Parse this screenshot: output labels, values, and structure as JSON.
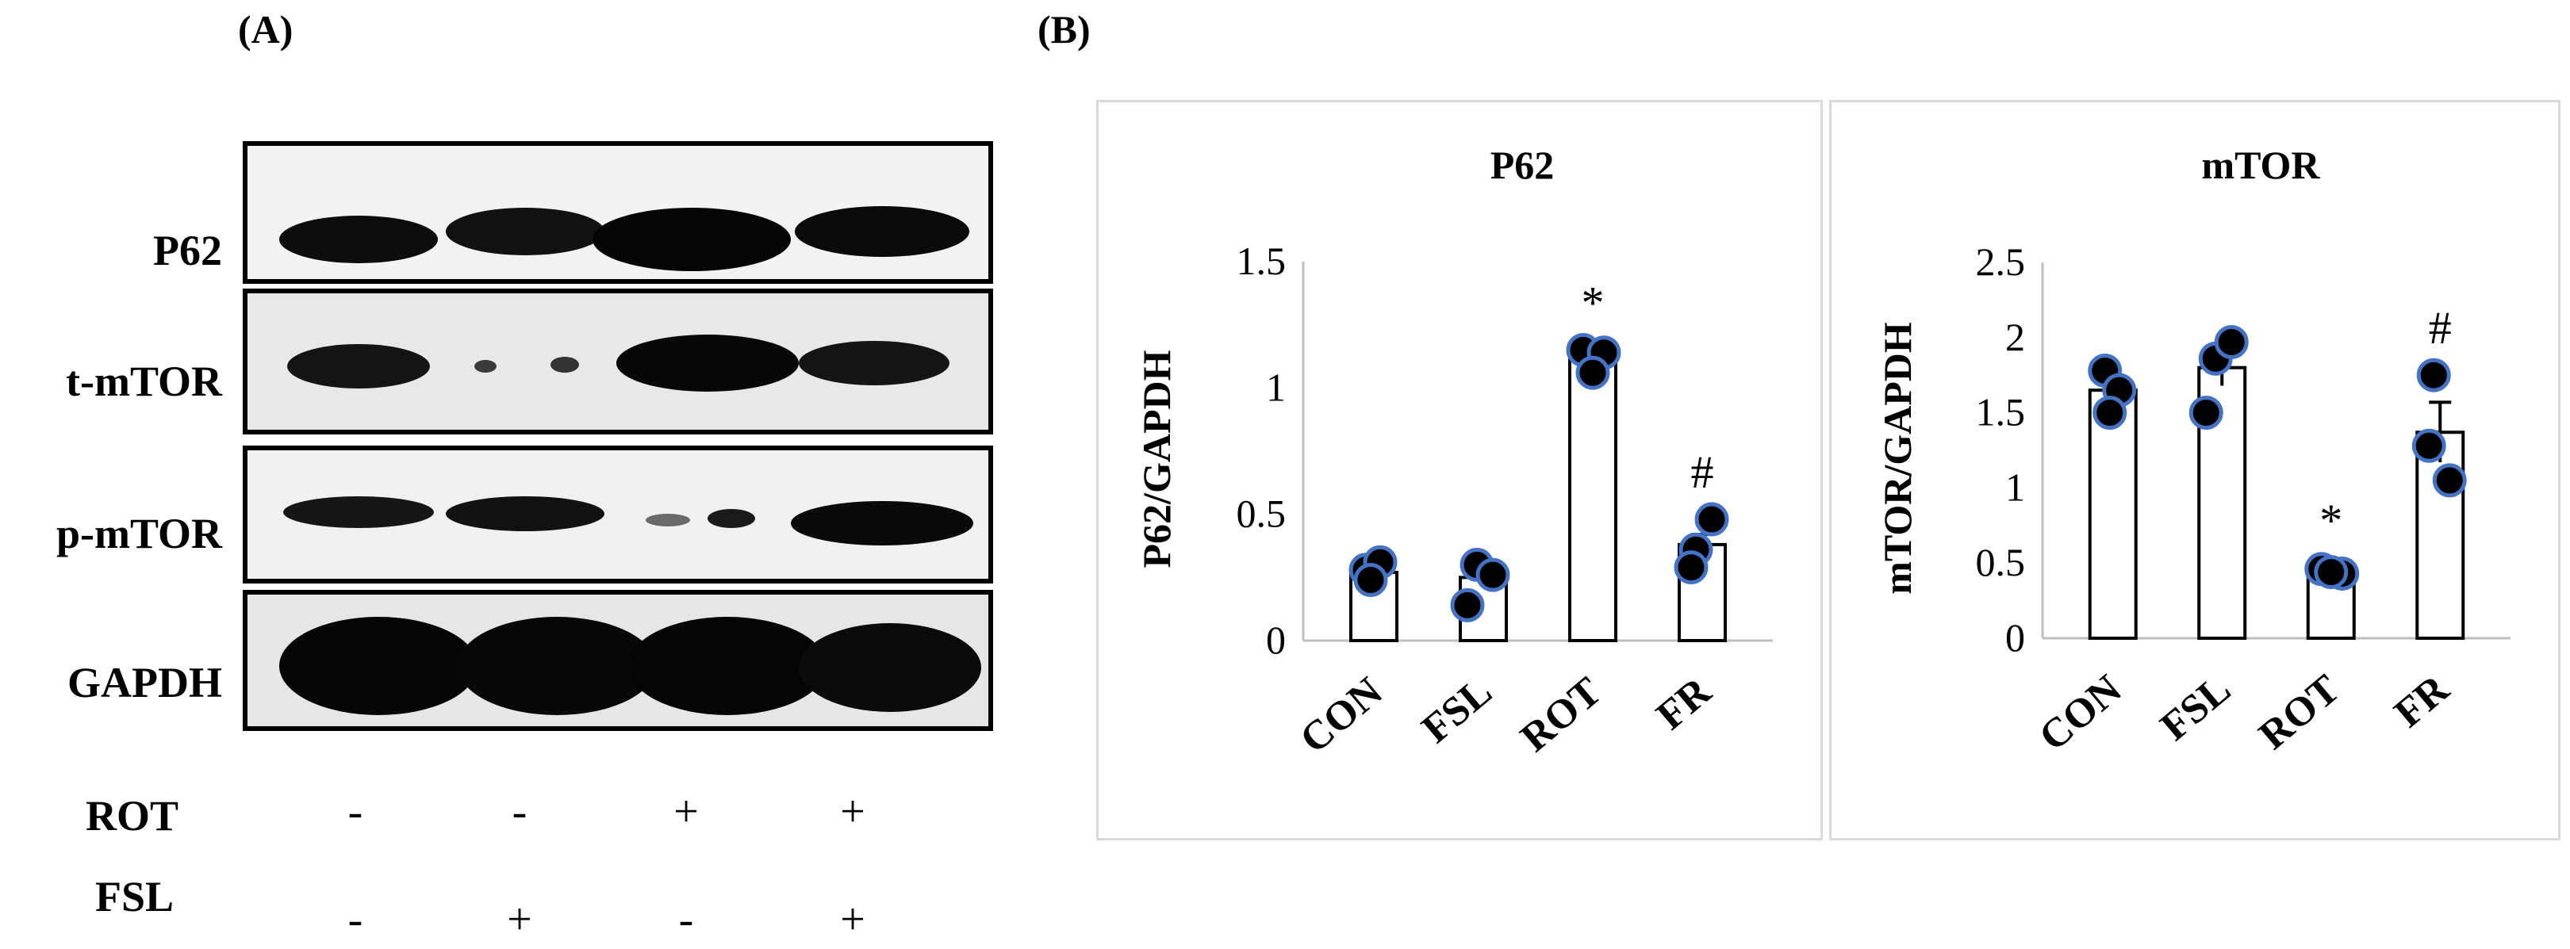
{
  "panels": {
    "a": "(A)",
    "b": "(B)"
  },
  "blots": [
    {
      "label": "P62",
      "bands": [
        0.8,
        0.8,
        1.0,
        0.9
      ]
    },
    {
      "label": "t-mTOR",
      "bands": [
        0.75,
        0.25,
        0.9,
        0.7
      ]
    },
    {
      "label": "p-mTOR",
      "bands": [
        0.6,
        0.65,
        0.25,
        0.85
      ]
    },
    {
      "label": "GAPDH",
      "bands": [
        1.0,
        1.0,
        1.0,
        1.0
      ]
    }
  ],
  "treatments": [
    {
      "label": "ROT",
      "signs": [
        "-",
        "-",
        "+",
        "+"
      ]
    },
    {
      "label": "FSL",
      "signs": [
        "-",
        "+",
        "-",
        "+"
      ]
    }
  ],
  "chart_data": [
    {
      "type": "bar",
      "title": "P62",
      "ylabel": "P62/GAPDH",
      "categories": [
        "CON",
        "FSL",
        "ROT",
        "FR"
      ],
      "values": [
        0.27,
        0.25,
        1.13,
        0.38
      ],
      "errors": [
        0.02,
        0.04,
        0.02,
        0.04
      ],
      "points": [
        [
          0.28,
          0.31,
          0.24
        ],
        [
          0.3,
          0.26,
          0.14
        ],
        [
          1.15,
          1.14,
          1.06
        ],
        [
          0.36,
          0.29,
          0.48
        ]
      ],
      "annotations": [
        "",
        "",
        "*",
        "#"
      ],
      "ylim": [
        0,
        1.5
      ],
      "yticks": [
        "0",
        "0.5",
        "1",
        "1.5"
      ],
      "ytick_values": [
        0,
        0.5,
        1,
        1.5
      ]
    },
    {
      "type": "bar",
      "title": "mTOR",
      "ylabel": "mTOR/GAPDH",
      "categories": [
        "CON",
        "FSL",
        "ROT",
        "FR"
      ],
      "values": [
        1.65,
        1.8,
        0.45,
        1.37
      ],
      "errors": [
        0.1,
        0.12,
        0.02,
        0.2
      ],
      "points": [
        [
          1.78,
          1.65,
          1.5
        ],
        [
          1.86,
          1.97,
          1.5
        ],
        [
          0.46,
          0.43,
          0.44
        ],
        [
          1.75,
          1.28,
          1.05
        ]
      ],
      "annotations": [
        "",
        "",
        "*",
        "#"
      ],
      "ylim": [
        0,
        2.5
      ],
      "yticks": [
        "0",
        "0.5",
        "1",
        "1.5",
        "2",
        "2.5"
      ],
      "ytick_values": [
        0,
        0.5,
        1,
        1.5,
        2,
        2.5
      ]
    }
  ]
}
